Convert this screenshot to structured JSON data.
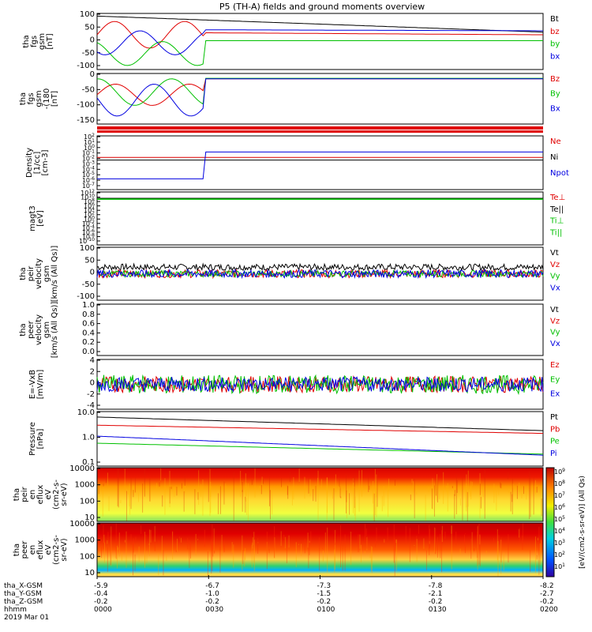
{
  "title": "P5 (TH-A) fields and ground moments overview",
  "chart_data": [
    {
      "type": "line",
      "panel": "fgs_gsm_mag",
      "ylabel": [
        "tha",
        "fgs",
        "gsm",
        "[nT]"
      ],
      "yticks": [
        "100",
        "50",
        "0",
        "-50",
        "-100"
      ],
      "ylim": [
        -100,
        110
      ],
      "series": [
        {
          "name": "Bt",
          "color": "#000000"
        },
        {
          "name": "bz",
          "color": "#e00000"
        },
        {
          "name": "by",
          "color": "#00c000"
        },
        {
          "name": "bx",
          "color": "#0000e0"
        }
      ]
    },
    {
      "type": "line",
      "panel": "fgs_gsm_components",
      "ylabel": [
        "tha",
        "fgs",
        "gsm",
        "-(180",
        "[nT]"
      ],
      "yticks": [
        "0",
        "-50",
        "-100",
        "-150"
      ],
      "ylim": [
        -170,
        20
      ],
      "series": [
        {
          "name": "Bz",
          "color": "#e00000"
        },
        {
          "name": "By",
          "color": "#00c000"
        },
        {
          "name": "Bx",
          "color": "#0000e0"
        }
      ]
    },
    {
      "type": "line",
      "panel": "density",
      "ylabel": [
        "Density",
        "[1/cc]",
        "[cm-3]"
      ],
      "yticks": [
        "10^2",
        "10^1",
        "10^0",
        "10^-1",
        "10^-2",
        "10^-3",
        "10^-4",
        "10^-5",
        "10^-6",
        "10^-7"
      ],
      "series": [
        {
          "name": "Ne",
          "color": "#e00000"
        },
        {
          "name": "Ni",
          "color": "#000000"
        },
        {
          "name": "Npot",
          "color": "#0000e0"
        }
      ]
    },
    {
      "type": "line",
      "panel": "temperature",
      "ylabel": [
        "magt3",
        "[eV]"
      ],
      "yticks": [
        "10^12",
        "10^10",
        "10^8",
        "10^6",
        "10^4",
        "10^2",
        "10^0",
        "10^-2",
        "10^-4",
        "10^-6",
        "10^-8",
        "10^-10"
      ],
      "series": [
        {
          "name": "Te⊥",
          "color": "#e00000"
        },
        {
          "name": "Te||",
          "color": "#000000"
        },
        {
          "name": "Ti⊥",
          "color": "#00c000"
        },
        {
          "name": "Ti||",
          "color": "#00c000"
        }
      ]
    },
    {
      "type": "line",
      "panel": "peir_velocity",
      "ylabel": [
        "tha",
        "peir",
        "velocity",
        "gsm",
        "[km/s (All Qs)]"
      ],
      "yticks": [
        "100",
        "50",
        "0",
        "-50",
        "-100"
      ],
      "ylim": [
        -100,
        100
      ],
      "series": [
        {
          "name": "Vt",
          "color": "#000000"
        },
        {
          "name": "Vz",
          "color": "#e00000"
        },
        {
          "name": "Vy",
          "color": "#00c000"
        },
        {
          "name": "Vx",
          "color": "#0000e0"
        }
      ]
    },
    {
      "type": "line",
      "panel": "peer_velocity",
      "ylabel": [
        "tha",
        "peer",
        "velocity",
        "gsm",
        "[km/s (All Qs)]"
      ],
      "yticks": [
        "1.0",
        "0.8",
        "0.6",
        "0.4",
        "0.2",
        "0.0"
      ],
      "ylim": [
        0,
        1
      ],
      "series": [
        {
          "name": "Vt",
          "color": "#000000"
        },
        {
          "name": "Vz",
          "color": "#e00000"
        },
        {
          "name": "Vy",
          "color": "#00c000"
        },
        {
          "name": "Vx",
          "color": "#0000e0"
        }
      ]
    },
    {
      "type": "line",
      "panel": "efield",
      "ylabel": [
        "E=-VxB",
        "[mV/m]"
      ],
      "yticks": [
        "4",
        "2",
        "0",
        "-2",
        "-4"
      ],
      "ylim": [
        -4,
        4
      ],
      "series": [
        {
          "name": "Ez",
          "color": "#e00000"
        },
        {
          "name": "Ey",
          "color": "#00c000"
        },
        {
          "name": "Ex",
          "color": "#0000e0"
        }
      ]
    },
    {
      "type": "line",
      "panel": "pressure",
      "ylabel": [
        "Pressure",
        "[nPa]"
      ],
      "yticks": [
        "10.0",
        "1.0",
        "0.1"
      ],
      "log": true,
      "series": [
        {
          "name": "Pt",
          "color": "#000000"
        },
        {
          "name": "Pb",
          "color": "#e00000"
        },
        {
          "name": "Pe",
          "color": "#00c000"
        },
        {
          "name": "Pi",
          "color": "#0000e0"
        }
      ]
    },
    {
      "type": "heatmap",
      "panel": "peir_en_eflux",
      "ylabel": [
        "tha",
        "peir",
        "en",
        "eflux",
        "eV",
        "(cm2-s-",
        "sr-eV)"
      ],
      "yticks": [
        "10000",
        "1000",
        "100",
        "10"
      ]
    },
    {
      "type": "heatmap",
      "panel": "peer_en_eflux",
      "ylabel": [
        "tha",
        "peer",
        "en",
        "eflux",
        "eV",
        "(cm2-s-",
        "sr-eV)"
      ],
      "yticks": [
        "10000",
        "1000",
        "100",
        "10"
      ]
    }
  ],
  "colorbar": {
    "label": "[eV/(cm2-s-sr-eV)]  (All Qs)",
    "ticks": [
      "10^9",
      "10^8",
      "10^7",
      "10^6",
      "10^5",
      "10^4",
      "10^3",
      "10^2",
      "10^1"
    ]
  },
  "xaxis": {
    "tick_times": [
      "0000",
      "0030",
      "0100",
      "0130",
      "0200"
    ],
    "rows": [
      {
        "label": "tha_X-GSM",
        "values": [
          "-5.9",
          "-6.7",
          "-7.3",
          "-7.8",
          "-8.2"
        ]
      },
      {
        "label": "tha_Y-GSM",
        "values": [
          "-0.4",
          "-1.0",
          "-1.5",
          "-2.1",
          "-2.7"
        ]
      },
      {
        "label": "tha_Z-GSM",
        "values": [
          "-0.2",
          "-0.2",
          "-0.2",
          "-0.2",
          "-0.2"
        ]
      },
      {
        "label": "hhmm",
        "values": [
          "0000",
          "0030",
          "0100",
          "0130",
          "0200"
        ]
      }
    ],
    "date": "2019 Mar 01"
  }
}
